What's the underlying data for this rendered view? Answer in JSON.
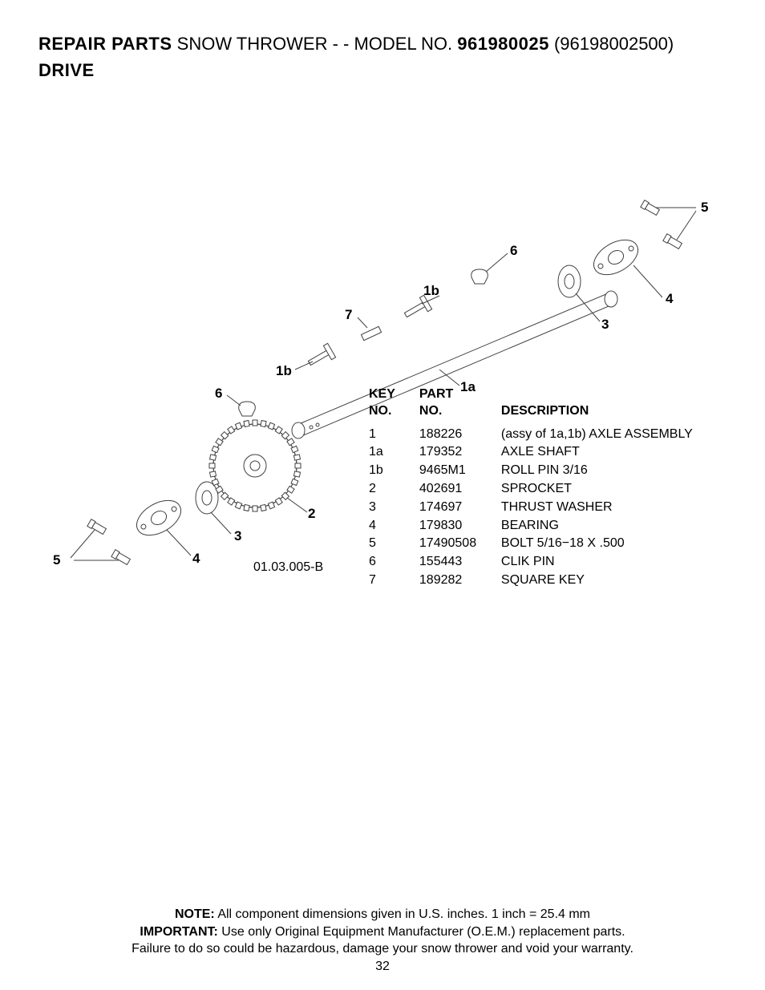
{
  "header": {
    "repair_parts": "REPAIR PARTS",
    "product": "SNOW THROWER - - MODEL NO.",
    "model_bold": "961980025",
    "model_paren": "(96198002500)",
    "section": "DRIVE"
  },
  "diagram": {
    "drawing_code": "01.03.005-B",
    "callouts": {
      "c5_tr": "5",
      "c4_r": "4",
      "c3_r": "3",
      "c6_tr": "6",
      "c1b_t": "1b",
      "c7": "7",
      "c1b_l": "1b",
      "c1a": "1a",
      "c6_l": "6",
      "c2": "2",
      "c3_l": "3",
      "c4_l": "4",
      "c5_l": "5"
    }
  },
  "table": {
    "headers": {
      "key": "KEY\nNO.",
      "part": "PART\nNO.",
      "desc": "DESCRIPTION"
    },
    "rows": [
      {
        "key": "1",
        "part": "188226",
        "desc": "(assy of 1a,1b) AXLE ASSEMBLY"
      },
      {
        "key": "1a",
        "part": "179352",
        "desc": "AXLE SHAFT"
      },
      {
        "key": "1b",
        "part": "9465M1",
        "desc": "ROLL PIN 3/16"
      },
      {
        "key": "2",
        "part": "402691",
        "desc": "SPROCKET"
      },
      {
        "key": "3",
        "part": "174697",
        "desc": "THRUST WASHER"
      },
      {
        "key": "4",
        "part": "179830",
        "desc": "BEARING"
      },
      {
        "key": "5",
        "part": "17490508",
        "desc": "BOLT 5/16−18 X .500"
      },
      {
        "key": "6",
        "part": "155443",
        "desc": "CLIK PIN"
      },
      {
        "key": "7",
        "part": "189282",
        "desc": "SQUARE KEY"
      }
    ]
  },
  "footer": {
    "note_label": "NOTE:",
    "note_text": "All component dimensions given in U.S. inches.   1 inch = 25.4 mm",
    "important_label": "IMPORTANT:",
    "important_text": "Use only Original Equipment Manufacturer (O.E.M.) replacement parts.",
    "warning": "Failure to do so could be hazardous, damage your snow thrower and void your warranty.",
    "page": "32"
  },
  "style": {
    "colors": {
      "text": "#000000",
      "bg": "#ffffff",
      "line": "#404040"
    },
    "fontsizes": {
      "title": 22,
      "body": 16,
      "callout": 17
    }
  }
}
